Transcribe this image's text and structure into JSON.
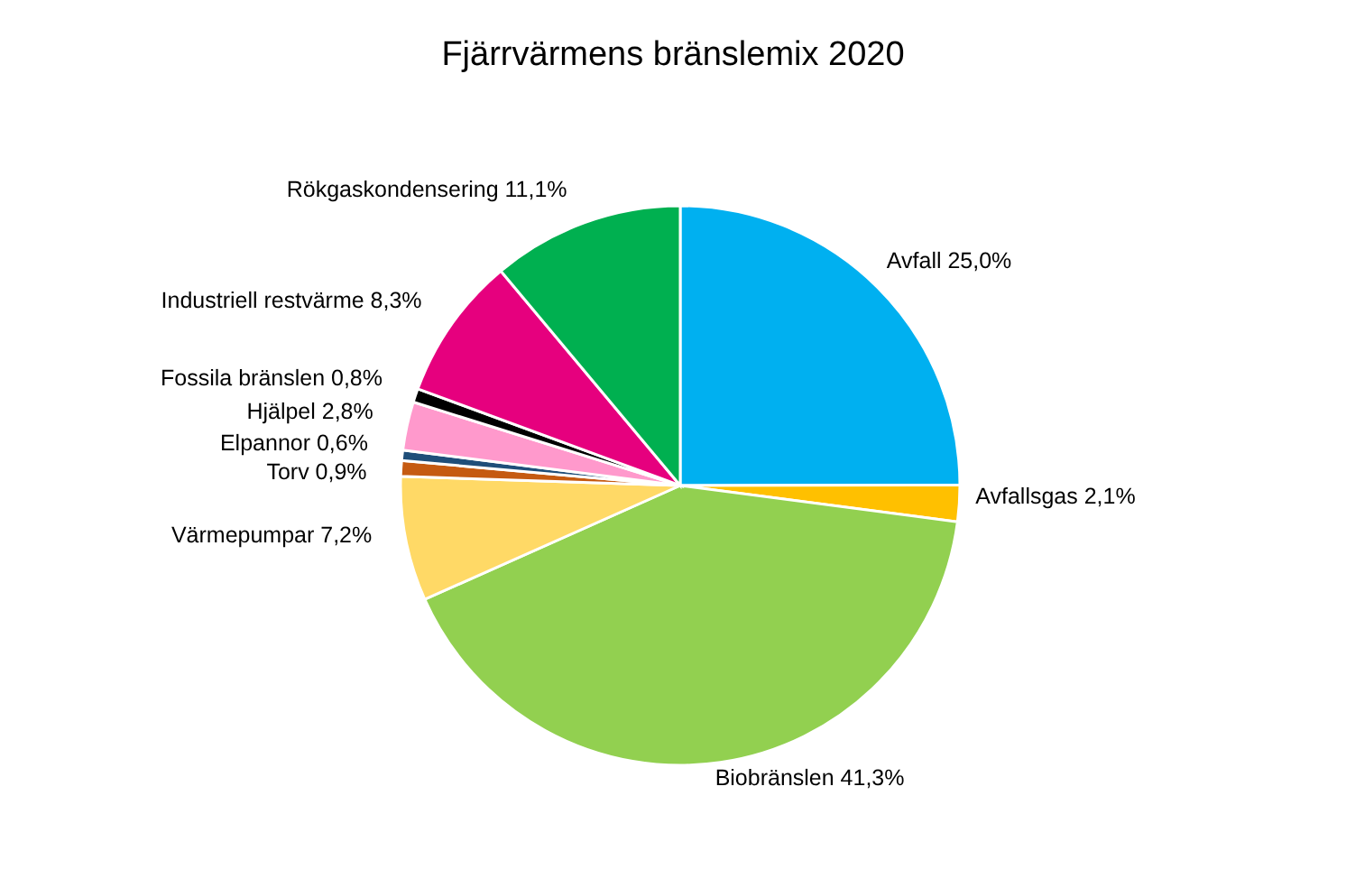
{
  "chart_data": {
    "type": "pie",
    "title": "Fjärrvärmens bränslemix 2020",
    "categories": [
      "Avfall",
      "Avfallsgas",
      "Biobränslen",
      "Värmepumpar",
      "Torv",
      "Elpannor",
      "Hjälpel",
      "Fossila bränslen",
      "Industriell restvärme",
      "Rökgaskondensering"
    ],
    "values": [
      25.0,
      2.1,
      41.3,
      7.2,
      0.9,
      0.6,
      2.8,
      0.8,
      8.3,
      11.1
    ],
    "value_labels": [
      "25,0%",
      "2,1%",
      "41,3%",
      "7,2%",
      "0,9%",
      "0,6%",
      "2,8%",
      "0,8%",
      "8,3%",
      "11,1%"
    ],
    "colors": [
      "#00b0f0",
      "#ffc000",
      "#92d050",
      "#ffd966",
      "#c55a11",
      "#1f4e79",
      "#ff99cc",
      "#000000",
      "#e6007e",
      "#00b050"
    ],
    "legend": false
  }
}
